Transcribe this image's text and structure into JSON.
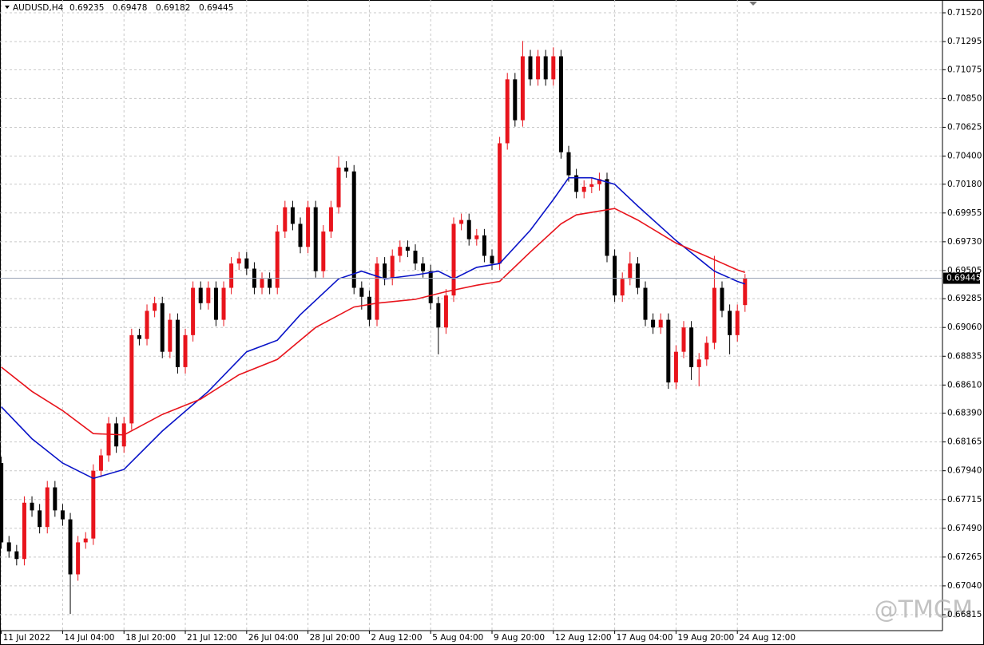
{
  "chart_data": {
    "type": "candlestick",
    "title": "AUDUSD,H4",
    "open": [
      0.68,
      0.6738,
      0.6731,
      0.6725,
      0.6769,
      0.6763,
      0.675,
      0.6781,
      0.6763,
      0.6756,
      0.6713,
      0.6738,
      0.6741,
      0.6794,
      0.6806,
      0.6831,
      0.6813,
      0.6831,
      0.69,
      0.6897,
      0.6919,
      0.6925,
      0.6887,
      0.6912,
      0.6875,
      0.69,
      0.6937,
      0.6925,
      0.6937,
      0.6912,
      0.6937,
      0.6956,
      0.696,
      0.6952,
      0.6937,
      0.6944,
      0.6937,
      0.6981,
      0.7,
      0.6987,
      0.6969,
      0.7,
      0.695,
      0.6981,
      0.7,
      0.7031,
      0.7028,
      0.6937,
      0.693,
      0.6912,
      0.6956,
      0.6944,
      0.6962,
      0.6969,
      0.6966,
      0.6956,
      0.695,
      0.6925,
      0.6906,
      0.6931,
      0.6987,
      0.699,
      0.6975,
      0.6978,
      0.6962,
      0.6956,
      0.705,
      0.71,
      0.7068,
      0.7118,
      0.71,
      0.7118,
      0.71,
      0.7118,
      0.7043,
      0.7025,
      0.7012,
      0.7016,
      0.7018,
      0.7022,
      0.6962,
      0.6931,
      0.6944,
      0.6956,
      0.6937,
      0.6912,
      0.6906,
      0.6912,
      0.6863,
      0.6887,
      0.6906,
      0.6875,
      0.6881,
      0.6894,
      0.6937,
      0.6919,
      0.69,
      0.69235
    ],
    "high": [
      0.6805,
      0.6743,
      0.6736,
      0.6774,
      0.6774,
      0.6768,
      0.6786,
      0.6786,
      0.6768,
      0.6761,
      0.6743,
      0.6746,
      0.6799,
      0.6811,
      0.6836,
      0.6836,
      0.6836,
      0.6905,
      0.6905,
      0.6924,
      0.693,
      0.693,
      0.6917,
      0.6917,
      0.6905,
      0.6942,
      0.6942,
      0.6942,
      0.6942,
      0.6942,
      0.6961,
      0.6965,
      0.6965,
      0.6957,
      0.6949,
      0.6949,
      0.6986,
      0.7005,
      0.7005,
      0.6992,
      0.7005,
      0.7005,
      0.6986,
      0.7005,
      0.704,
      0.7036,
      0.7033,
      0.6942,
      0.6935,
      0.6961,
      0.6961,
      0.6967,
      0.6974,
      0.6974,
      0.6971,
      0.6961,
      0.6955,
      0.693,
      0.6936,
      0.6992,
      0.6995,
      0.6995,
      0.6983,
      0.6983,
      0.6967,
      0.7055,
      0.7105,
      0.7105,
      0.713,
      0.7123,
      0.7123,
      0.7123,
      0.7125,
      0.7123,
      0.7048,
      0.703,
      0.7021,
      0.7023,
      0.7027,
      0.7027,
      0.6967,
      0.6949,
      0.6965,
      0.6961,
      0.6942,
      0.6917,
      0.6917,
      0.6917,
      0.6892,
      0.6911,
      0.6911,
      0.6886,
      0.6899,
      0.6962,
      0.6942,
      0.6924,
      0.6924,
      0.69478
    ],
    "low": [
      0.6733,
      0.6726,
      0.672,
      0.672,
      0.6758,
      0.6745,
      0.6745,
      0.6758,
      0.6751,
      0.6682,
      0.6708,
      0.6733,
      0.6736,
      0.6789,
      0.6801,
      0.6808,
      0.6808,
      0.6826,
      0.6892,
      0.6892,
      0.6914,
      0.6882,
      0.6882,
      0.687,
      0.687,
      0.6895,
      0.692,
      0.692,
      0.6907,
      0.6907,
      0.6932,
      0.6951,
      0.6947,
      0.6932,
      0.6932,
      0.6932,
      0.6932,
      0.6976,
      0.6982,
      0.6964,
      0.6964,
      0.6945,
      0.6945,
      0.6976,
      0.6995,
      0.7023,
      0.6932,
      0.692,
      0.6907,
      0.6907,
      0.6939,
      0.6939,
      0.6957,
      0.6961,
      0.6951,
      0.6945,
      0.692,
      0.6885,
      0.6901,
      0.6926,
      0.6982,
      0.697,
      0.697,
      0.6957,
      0.6951,
      0.6951,
      0.7045,
      0.7063,
      0.7063,
      0.7095,
      0.7095,
      0.7095,
      0.7095,
      0.7038,
      0.702,
      0.7007,
      0.7007,
      0.7011,
      0.7013,
      0.6957,
      0.6926,
      0.6926,
      0.6939,
      0.6932,
      0.6907,
      0.6901,
      0.6901,
      0.6858,
      0.6858,
      0.6882,
      0.6865,
      0.686,
      0.6876,
      0.6889,
      0.6914,
      0.6885,
      0.6895,
      0.69182
    ],
    "close": [
      0.6738,
      0.6731,
      0.6725,
      0.6769,
      0.6763,
      0.675,
      0.6781,
      0.6763,
      0.6756,
      0.6713,
      0.6738,
      0.6741,
      0.6794,
      0.6806,
      0.6831,
      0.6813,
      0.6831,
      0.69,
      0.6897,
      0.6919,
      0.6925,
      0.6887,
      0.6912,
      0.6875,
      0.69,
      0.6937,
      0.6925,
      0.6937,
      0.6912,
      0.6937,
      0.6956,
      0.696,
      0.6952,
      0.6937,
      0.6944,
      0.6937,
      0.6981,
      0.7,
      0.6987,
      0.6969,
      0.7,
      0.695,
      0.6981,
      0.7,
      0.7031,
      0.7028,
      0.6937,
      0.693,
      0.6912,
      0.6956,
      0.6944,
      0.6962,
      0.6969,
      0.6966,
      0.6956,
      0.695,
      0.6925,
      0.6906,
      0.6931,
      0.6987,
      0.699,
      0.6975,
      0.6978,
      0.6962,
      0.6956,
      0.705,
      0.71,
      0.7068,
      0.7118,
      0.71,
      0.7118,
      0.71,
      0.7118,
      0.7043,
      0.7025,
      0.7012,
      0.7016,
      0.7018,
      0.7022,
      0.6962,
      0.6931,
      0.6944,
      0.6956,
      0.6937,
      0.6912,
      0.6906,
      0.6912,
      0.6863,
      0.6887,
      0.6906,
      0.6875,
      0.6881,
      0.6894,
      0.6937,
      0.6919,
      0.69,
      0.6919,
      0.69445
    ],
    "up_color": "#e8141c",
    "down_color": "#000000",
    "series": [
      {
        "color": "#0a14c8",
        "x": [
          0,
          4,
          8,
          12,
          16,
          21,
          27,
          32,
          36,
          39,
          44,
          47,
          50,
          54,
          57,
          59,
          62,
          65,
          69,
          72,
          74,
          77,
          80,
          83,
          88,
          93,
          96,
          97
        ],
        "values": [
          0.6844,
          0.6819,
          0.68,
          0.6788,
          0.6795,
          0.6825,
          0.6856,
          0.6887,
          0.6896,
          0.6916,
          0.6944,
          0.695,
          0.6944,
          0.6947,
          0.695,
          0.6944,
          0.6953,
          0.6956,
          0.6982,
          0.7006,
          0.7023,
          0.7023,
          0.7018,
          0.7001,
          0.6974,
          0.695,
          0.6942,
          0.694
        ]
      },
      {
        "color": "#e8141c",
        "x": [
          0,
          4,
          8,
          12,
          16,
          21,
          26,
          31,
          36,
          41,
          46,
          49,
          54,
          58,
          62,
          65,
          69,
          73,
          75,
          80,
          83,
          88,
          93,
          96,
          97
        ],
        "values": [
          0.6875,
          0.6856,
          0.6841,
          0.6823,
          0.6822,
          0.6838,
          0.685,
          0.6869,
          0.6881,
          0.6906,
          0.6922,
          0.6925,
          0.6928,
          0.6934,
          0.6939,
          0.6942,
          0.6965,
          0.6987,
          0.6994,
          0.6999,
          0.699,
          0.6972,
          0.6959,
          0.6951,
          0.6949
        ]
      }
    ],
    "xlim": [
      -0.17,
      122.75
    ],
    "ylim": [
      0.6669,
      0.7162
    ],
    "xticks": [
      {
        "value": 0,
        "label": "11 Jul 2022"
      },
      {
        "value": 8,
        "label": "14 Jul 04:00"
      },
      {
        "value": 16,
        "label": "18 Jul 20:00"
      },
      {
        "value": 24,
        "label": "21 Jul 12:00"
      },
      {
        "value": 32,
        "label": "26 Jul 04:00"
      },
      {
        "value": 40,
        "label": "28 Jul 20:00"
      },
      {
        "value": 48,
        "label": "2 Aug 12:00"
      },
      {
        "value": 56,
        "label": "5 Aug 04:00"
      },
      {
        "value": 64,
        "label": "9 Aug 20:00"
      },
      {
        "value": 72,
        "label": "12 Aug 12:00"
      },
      {
        "value": 80,
        "label": "17 Aug 04:00"
      },
      {
        "value": 88,
        "label": "19 Aug 20:00"
      },
      {
        "value": 96,
        "label": "24 Aug 12:00"
      }
    ],
    "yticks": [
      {
        "value": 0.7152,
        "label": "0.71520"
      },
      {
        "value": 0.71295,
        "label": "0.71295"
      },
      {
        "value": 0.71075,
        "label": "0.71075"
      },
      {
        "value": 0.7085,
        "label": "0.70850"
      },
      {
        "value": 0.70625,
        "label": "0.70625"
      },
      {
        "value": 0.704,
        "label": "0.70400"
      },
      {
        "value": 0.7018,
        "label": "0.70180"
      },
      {
        "value": 0.69955,
        "label": "0.69955"
      },
      {
        "value": 0.6973,
        "label": "0.69730"
      },
      {
        "value": 0.69505,
        "label": "0.69505"
      },
      {
        "value": 0.69285,
        "label": "0.69285"
      },
      {
        "value": 0.6906,
        "label": "0.69060"
      },
      {
        "value": 0.68835,
        "label": "0.68835"
      },
      {
        "value": 0.6861,
        "label": "0.68610"
      },
      {
        "value": 0.6839,
        "label": "0.68390"
      },
      {
        "value": 0.68165,
        "label": "0.68165"
      },
      {
        "value": 0.6794,
        "label": "0.67940"
      },
      {
        "value": 0.67715,
        "label": "0.67715"
      },
      {
        "value": 0.6749,
        "label": "0.67490"
      },
      {
        "value": 0.67265,
        "label": "0.67265"
      },
      {
        "value": 0.6704,
        "label": "0.67040"
      },
      {
        "value": 0.66815,
        "label": "0.66815"
      }
    ],
    "grid": true,
    "watermark": "@TMGM"
  }
}
